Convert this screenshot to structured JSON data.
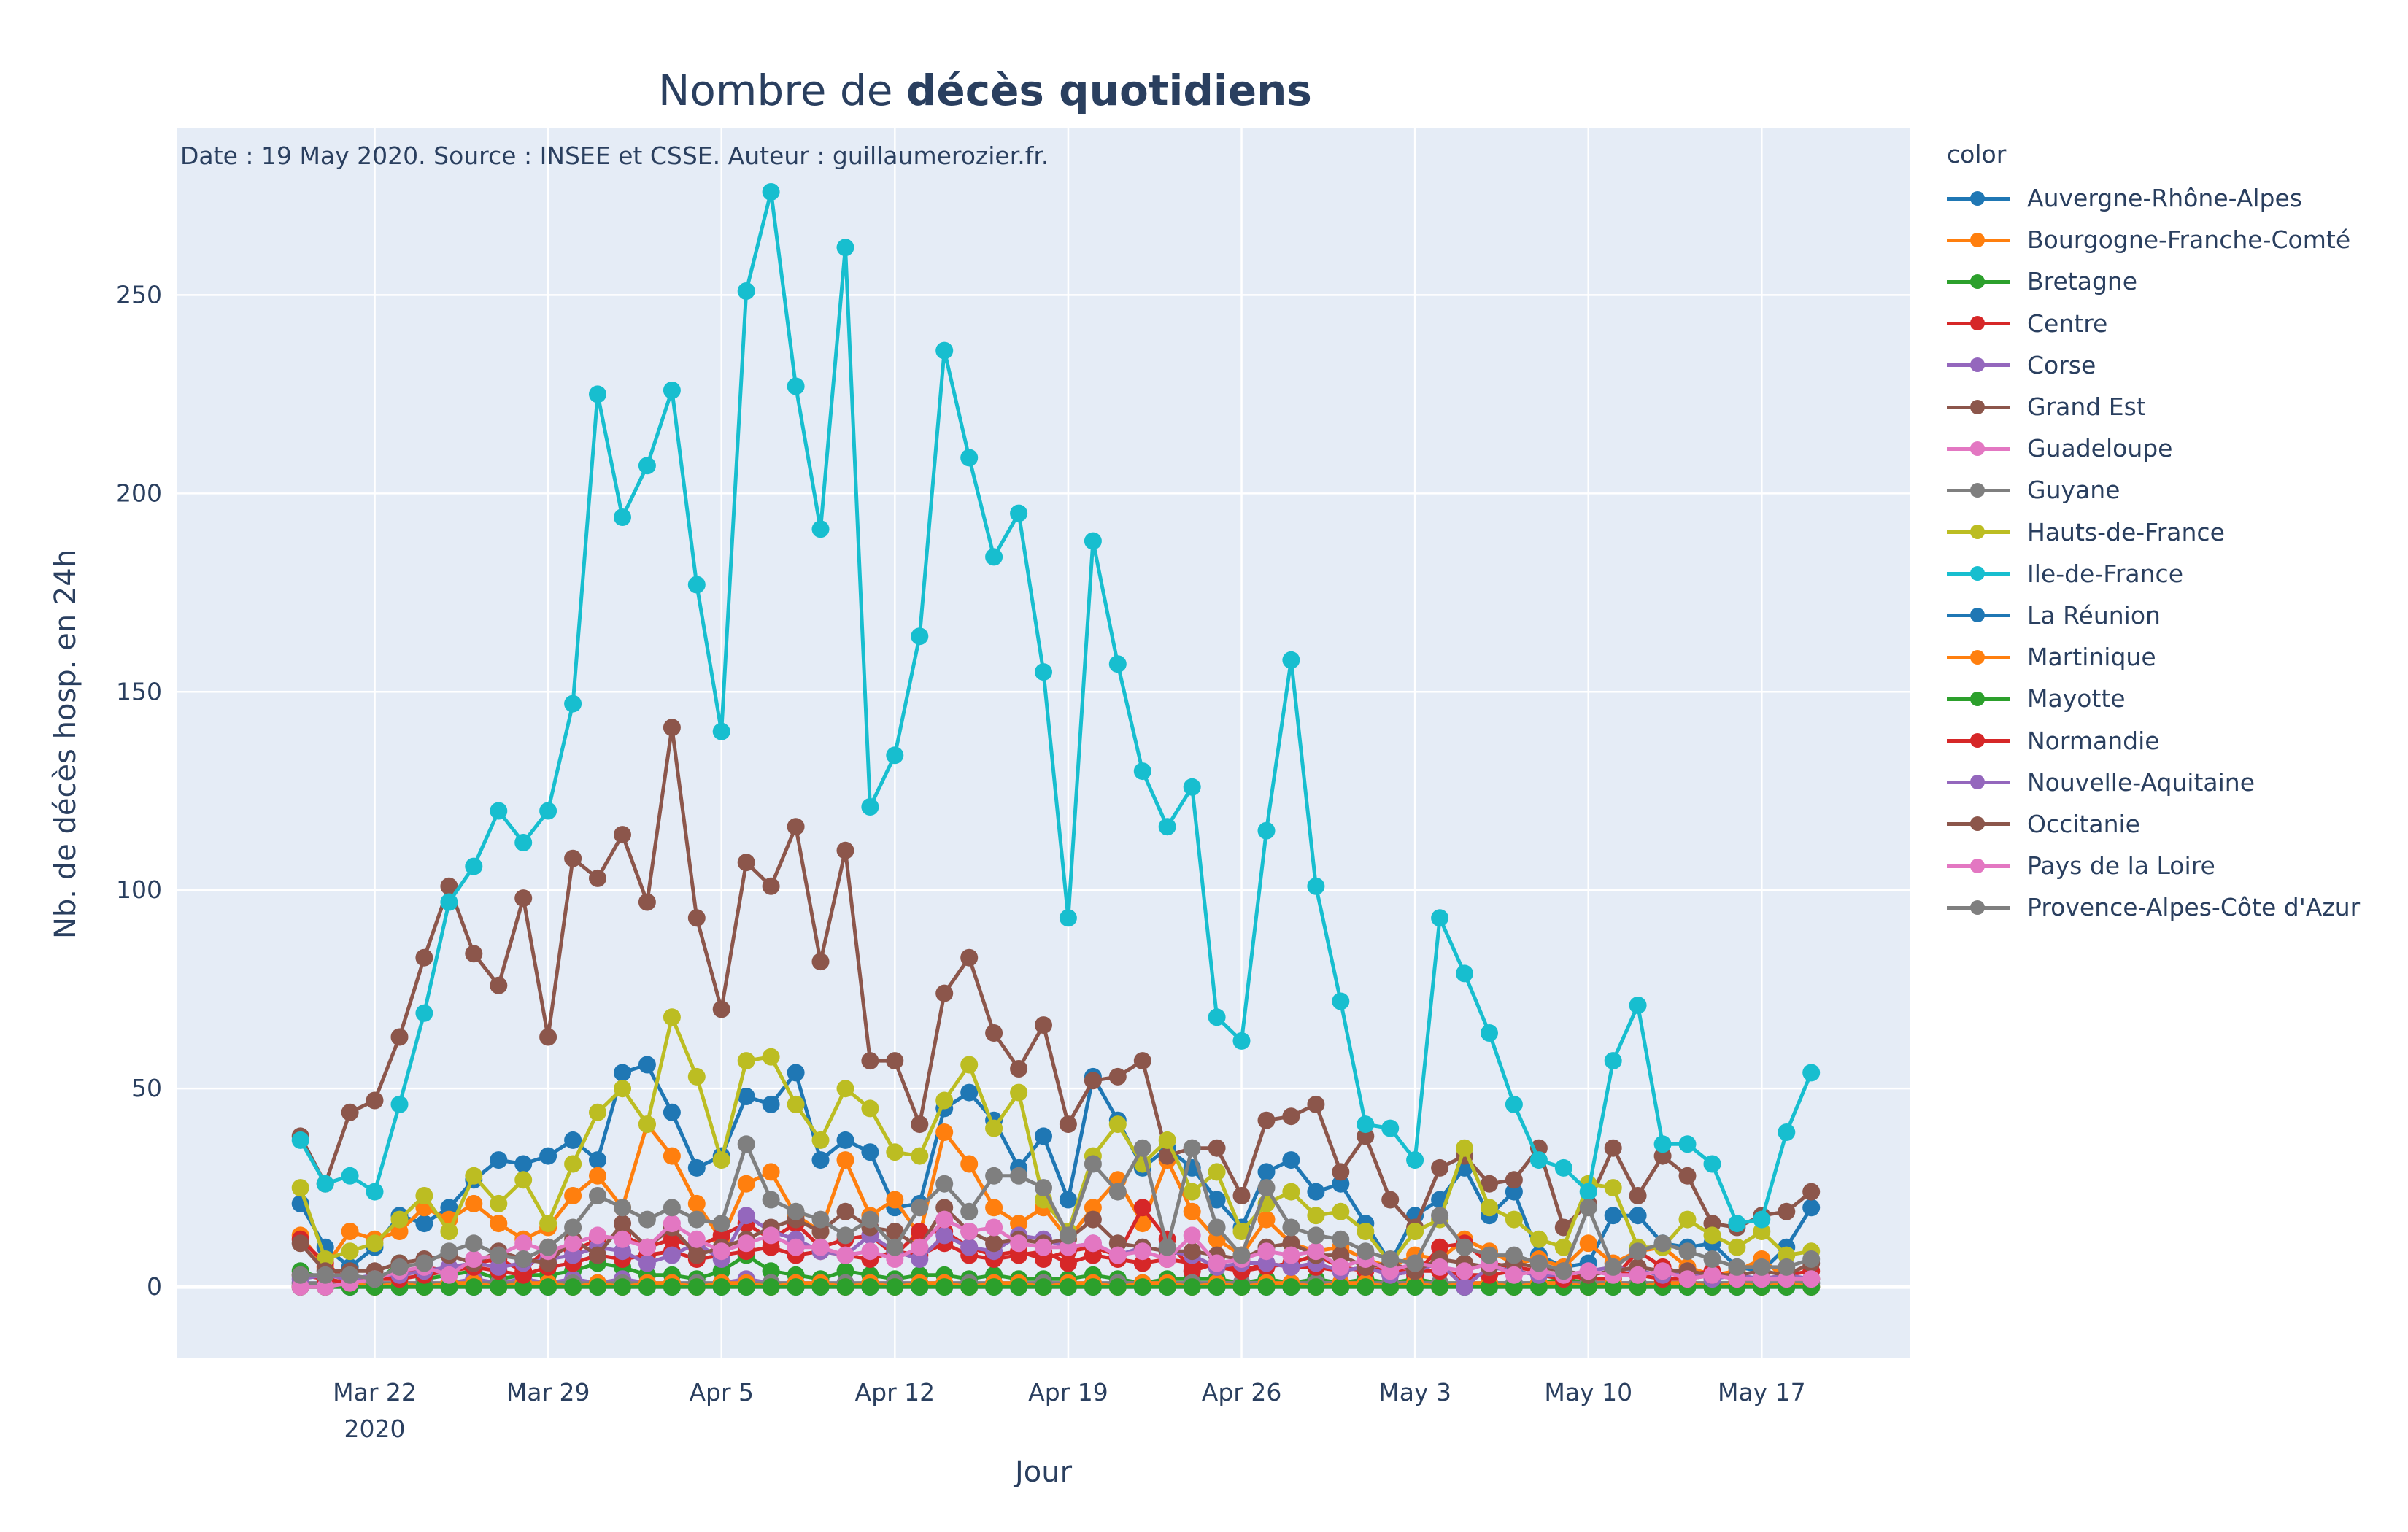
{
  "chart_data": {
    "type": "line",
    "title_prefix": "Nombre de ",
    "title_bold": "décès quotidiens",
    "annotation": "Date : 19 May 2020. Source : INSEE et CSSE. Auteur : guillaumerozier.fr.",
    "xlabel": "Jour",
    "ylabel": "Nb. de décès hosp. en 24h",
    "legend_title": "color",
    "legend_position": "right",
    "grid": true,
    "background": "#E5ECF6",
    "ylim": [
      -18,
      292
    ],
    "xlim": [
      "2020-03-14",
      "2020-05-23"
    ],
    "yticks": [
      0,
      50,
      100,
      150,
      200,
      250
    ],
    "xticks": [
      {
        "date": "2020-03-22",
        "label": "Mar 22",
        "sublabel": "2020"
      },
      {
        "date": "2020-03-29",
        "label": "Mar 29",
        "sublabel": ""
      },
      {
        "date": "2020-04-05",
        "label": "Apr 5",
        "sublabel": ""
      },
      {
        "date": "2020-04-12",
        "label": "Apr 12",
        "sublabel": ""
      },
      {
        "date": "2020-04-19",
        "label": "Apr 19",
        "sublabel": ""
      },
      {
        "date": "2020-04-26",
        "label": "Apr 26",
        "sublabel": ""
      },
      {
        "date": "2020-05-03",
        "label": "May 3",
        "sublabel": ""
      },
      {
        "date": "2020-05-10",
        "label": "May 10",
        "sublabel": ""
      },
      {
        "date": "2020-05-17",
        "label": "May 17",
        "sublabel": ""
      }
    ],
    "x_start": "2020-03-19",
    "series": [
      {
        "name": "Auvergne-Rhône-Alpes",
        "color": "#1f77b4",
        "values": [
          21,
          10,
          5,
          10,
          18,
          16,
          20,
          27,
          32,
          31,
          33,
          37,
          32,
          54,
          56,
          44,
          30,
          33,
          48,
          46,
          54,
          32,
          37,
          34,
          20,
          21,
          45,
          49,
          42,
          30,
          38,
          22,
          53,
          42,
          30,
          35,
          30,
          22,
          15,
          29,
          32,
          24,
          26,
          16,
          6,
          18,
          22,
          30,
          18,
          24,
          8,
          5,
          6,
          18,
          18,
          11,
          10,
          11,
          5,
          4,
          10,
          20
        ]
      },
      {
        "name": "Bourgogne-Franche-Comté",
        "color": "#ff7f0e",
        "values": [
          13,
          5,
          14,
          12,
          14,
          20,
          17,
          21,
          16,
          12,
          15,
          23,
          28,
          20,
          41,
          33,
          21,
          12,
          26,
          29,
          18,
          14,
          32,
          18,
          22,
          13,
          39,
          31,
          20,
          16,
          20,
          12,
          20,
          27,
          16,
          32,
          19,
          12,
          8,
          17,
          11,
          9,
          10,
          7,
          5,
          8,
          7,
          12,
          9,
          6,
          7,
          5,
          11,
          6,
          9,
          10,
          5,
          3,
          4,
          7,
          2,
          2
        ]
      },
      {
        "name": "Bretagne",
        "color": "#2ca02c",
        "values": [
          4,
          2,
          1,
          1,
          6,
          2,
          3,
          4,
          2,
          3,
          3,
          4,
          6,
          5,
          3,
          3,
          2,
          4,
          8,
          4,
          3,
          2,
          4,
          3,
          2,
          3,
          3,
          2,
          3,
          2,
          2,
          2,
          3,
          2,
          1,
          2,
          2,
          2,
          1,
          2,
          1,
          2,
          1,
          2,
          1,
          2,
          1,
          1,
          1,
          1,
          1,
          2,
          1,
          1,
          1,
          1,
          1,
          1,
          1,
          1,
          1,
          1
        ]
      },
      {
        "name": "Centre",
        "color": "#d62728",
        "values": [
          12,
          6,
          1,
          3,
          3,
          5,
          4,
          6,
          7,
          4,
          10,
          9,
          12,
          13,
          10,
          12,
          10,
          13,
          16,
          12,
          16,
          10,
          12,
          13,
          8,
          14,
          14,
          10,
          8,
          9,
          7,
          9,
          10,
          8,
          20,
          12,
          4,
          6,
          4,
          5,
          6,
          8,
          5,
          4,
          5,
          3,
          10,
          11,
          6,
          5,
          4,
          3,
          2,
          2,
          9,
          5,
          3,
          4,
          2,
          2,
          3,
          4
        ]
      },
      {
        "name": "Corse",
        "color": "#9467bd",
        "values": [
          1,
          1,
          2,
          1,
          1,
          1,
          1,
          2,
          1,
          2,
          1,
          2,
          1,
          2,
          1,
          1,
          1,
          1,
          2,
          1,
          1,
          1,
          1,
          1,
          1,
          1,
          1,
          1,
          1,
          1,
          1,
          1,
          1,
          1,
          1,
          1,
          1,
          1,
          1,
          1,
          1,
          1,
          1,
          1,
          1,
          1,
          1,
          0,
          1,
          1,
          1,
          1,
          1,
          1,
          1,
          1,
          1,
          1,
          1,
          1,
          1,
          1
        ]
      },
      {
        "name": "Grand Est",
        "color": "#8c564b",
        "values": [
          38,
          26,
          44,
          47,
          63,
          83,
          101,
          84,
          76,
          98,
          63,
          108,
          103,
          114,
          97,
          141,
          93,
          70,
          107,
          101,
          116,
          82,
          110,
          57,
          57,
          41,
          74,
          83,
          64,
          55,
          66,
          41,
          52,
          53,
          57,
          33,
          35,
          35,
          23,
          42,
          43,
          46,
          29,
          38,
          22,
          15,
          30,
          33,
          26,
          27,
          35,
          15,
          21,
          35,
          23,
          33,
          28,
          16,
          15,
          18,
          19,
          24
        ]
      },
      {
        "name": "Guadeloupe",
        "color": "#e377c2",
        "values": [
          0,
          0,
          1,
          0,
          1,
          1,
          1,
          0,
          1,
          1,
          0,
          1,
          1,
          1,
          1,
          1,
          0,
          1,
          1,
          1,
          1,
          1,
          0,
          1,
          1,
          1,
          1,
          0,
          1,
          1,
          1,
          1,
          0,
          1,
          1,
          1,
          1,
          1,
          1,
          1,
          0,
          1,
          1,
          0,
          1,
          1,
          0,
          1,
          1,
          0,
          1,
          1,
          0,
          1,
          1,
          0,
          1,
          1,
          0,
          1,
          1,
          0
        ]
      },
      {
        "name": "Guyane",
        "color": "#7f7f7f",
        "values": [
          1,
          1,
          0,
          1,
          1,
          1,
          1,
          1,
          1,
          1,
          1,
          1,
          1,
          1,
          1,
          1,
          1,
          1,
          1,
          1,
          1,
          1,
          1,
          1,
          1,
          1,
          1,
          1,
          1,
          1,
          1,
          1,
          1,
          1,
          1,
          1,
          1,
          1,
          1,
          1,
          1,
          1,
          1,
          1,
          1,
          1,
          1,
          1,
          1,
          1,
          1,
          1,
          1,
          1,
          1,
          1,
          1,
          1,
          1,
          1,
          1,
          1
        ]
      },
      {
        "name": "Hauts-de-France",
        "color": "#bcbd22",
        "values": [
          25,
          7,
          9,
          11,
          17,
          23,
          14,
          28,
          21,
          27,
          16,
          31,
          44,
          50,
          41,
          68,
          53,
          32,
          57,
          58,
          46,
          37,
          50,
          45,
          34,
          33,
          47,
          56,
          40,
          49,
          22,
          14,
          33,
          41,
          31,
          37,
          24,
          29,
          14,
          21,
          24,
          18,
          19,
          14,
          6,
          14,
          17,
          35,
          20,
          17,
          12,
          10,
          26,
          25,
          10,
          10,
          17,
          13,
          10,
          14,
          8,
          9
        ]
      },
      {
        "name": "Ile-de-France",
        "color": "#17becf",
        "values": [
          37,
          26,
          28,
          24,
          46,
          69,
          97,
          106,
          120,
          112,
          120,
          147,
          225,
          194,
          207,
          226,
          177,
          140,
          251,
          276,
          227,
          191,
          262,
          121,
          134,
          164,
          236,
          209,
          184,
          195,
          155,
          93,
          188,
          157,
          130,
          116,
          126,
          68,
          62,
          115,
          158,
          101,
          72,
          41,
          40,
          32,
          93,
          79,
          64,
          46,
          32,
          30,
          24,
          57,
          71,
          36,
          36,
          31,
          16,
          17,
          39,
          54
        ]
      },
      {
        "name": "La Réunion",
        "color": "#1f77b4",
        "values": [
          0,
          0,
          0,
          0,
          0,
          0,
          0,
          0,
          0,
          0,
          0,
          0,
          0,
          0,
          0,
          0,
          0,
          0,
          0,
          0,
          0,
          0,
          0,
          0,
          0,
          0,
          0,
          0,
          0,
          0,
          0,
          0,
          0,
          0,
          0,
          0,
          0,
          0,
          0,
          0,
          0,
          0,
          0,
          0,
          0,
          0,
          0,
          0,
          0,
          0,
          0,
          0,
          0,
          0,
          0,
          0,
          0,
          0,
          0,
          0,
          0,
          0
        ]
      },
      {
        "name": "Martinique",
        "color": "#ff7f0e",
        "values": [
          0,
          0,
          1,
          0,
          1,
          0,
          1,
          1,
          0,
          1,
          1,
          0,
          1,
          0,
          1,
          1,
          0,
          1,
          1,
          0,
          1,
          1,
          0,
          1,
          0,
          1,
          1,
          0,
          1,
          1,
          0,
          1,
          1,
          0,
          1,
          1,
          0,
          1,
          0,
          1,
          1,
          0,
          1,
          1,
          0,
          1,
          0,
          1,
          1,
          0,
          1,
          1,
          0,
          1,
          0,
          1,
          1,
          0,
          1,
          0,
          1,
          0
        ]
      },
      {
        "name": "Mayotte",
        "color": "#2ca02c",
        "values": [
          0,
          0,
          0,
          0,
          0,
          0,
          0,
          0,
          0,
          0,
          0,
          0,
          0,
          0,
          0,
          0,
          0,
          0,
          0,
          0,
          0,
          0,
          0,
          0,
          0,
          0,
          0,
          0,
          0,
          0,
          0,
          0,
          0,
          0,
          0,
          0,
          0,
          0,
          0,
          0,
          0,
          0,
          0,
          0,
          0,
          0,
          0,
          0,
          0,
          0,
          0,
          0,
          0,
          0,
          0,
          0,
          0,
          0,
          0,
          0,
          0,
          0
        ]
      },
      {
        "name": "Normandie",
        "color": "#d62728",
        "values": [
          3,
          2,
          1,
          2,
          2,
          3,
          4,
          5,
          4,
          3,
          5,
          6,
          8,
          7,
          8,
          9,
          7,
          8,
          9,
          10,
          8,
          9,
          8,
          7,
          9,
          8,
          11,
          8,
          7,
          8,
          9,
          6,
          8,
          7,
          6,
          7,
          6,
          5,
          4,
          6,
          5,
          5,
          4,
          5,
          3,
          4,
          4,
          3,
          3,
          4,
          3,
          2,
          3,
          4,
          3,
          2,
          2,
          3,
          2,
          2,
          2,
          2
        ]
      },
      {
        "name": "Nouvelle-Aquitaine",
        "color": "#9467bd",
        "values": [
          2,
          3,
          2,
          3,
          3,
          4,
          5,
          6,
          5,
          6,
          7,
          8,
          10,
          9,
          6,
          8,
          11,
          7,
          18,
          14,
          12,
          9,
          8,
          13,
          9,
          7,
          13,
          10,
          9,
          13,
          12,
          10,
          11,
          8,
          10,
          9,
          8,
          5,
          6,
          6,
          5,
          6,
          4,
          5,
          3,
          4,
          6,
          0,
          5,
          4,
          3,
          3,
          4,
          5,
          4,
          3,
          4,
          2,
          3,
          2,
          3,
          2
        ]
      },
      {
        "name": "Occitanie",
        "color": "#8c564b",
        "values": [
          11,
          4,
          4,
          4,
          6,
          7,
          8,
          6,
          9,
          7,
          6,
          12,
          8,
          16,
          10,
          15,
          8,
          10,
          12,
          15,
          17,
          14,
          19,
          15,
          14,
          10,
          20,
          14,
          11,
          12,
          11,
          12,
          17,
          11,
          10,
          9,
          9,
          8,
          7,
          10,
          11,
          8,
          8,
          5,
          6,
          4,
          7,
          6,
          5,
          6,
          5,
          4,
          3,
          4,
          5,
          4,
          4,
          3,
          3,
          4,
          3,
          6
        ]
      },
      {
        "name": "Pays de la Loire",
        "color": "#e377c2",
        "values": [
          0,
          0,
          1,
          2,
          4,
          5,
          3,
          7,
          8,
          11,
          9,
          11,
          13,
          12,
          10,
          16,
          12,
          9,
          11,
          13,
          10,
          10,
          8,
          9,
          7,
          10,
          17,
          14,
          15,
          11,
          10,
          10,
          11,
          8,
          9,
          7,
          13,
          6,
          7,
          9,
          8,
          9,
          5,
          7,
          4,
          6,
          5,
          4,
          6,
          3,
          4,
          3,
          4,
          3,
          3,
          4,
          2,
          3,
          2,
          2,
          2,
          2
        ]
      },
      {
        "name": "Provence-Alpes-Côte d'Azur",
        "color": "#7f7f7f",
        "values": [
          3,
          3,
          3,
          2,
          5,
          6,
          9,
          11,
          8,
          7,
          10,
          15,
          23,
          20,
          17,
          20,
          17,
          16,
          36,
          22,
          19,
          17,
          13,
          17,
          10,
          20,
          26,
          19,
          28,
          28,
          25,
          13,
          31,
          24,
          35,
          10,
          35,
          15,
          8,
          25,
          15,
          13,
          12,
          9,
          7,
          6,
          18,
          10,
          8,
          8,
          6,
          4,
          20,
          5,
          9,
          11,
          9,
          7,
          5,
          5,
          5,
          7
        ]
      }
    ]
  }
}
